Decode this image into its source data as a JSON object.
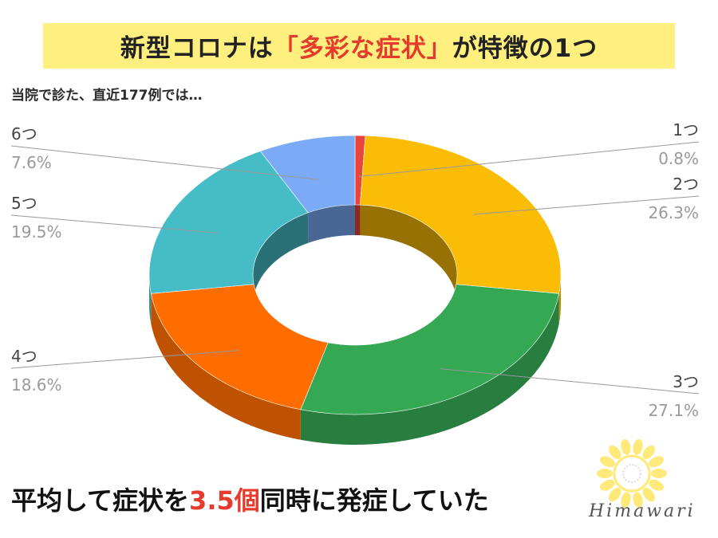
{
  "title": {
    "before": "新型コロナは",
    "open_bracket": "「",
    "highlight": "多彩な症状",
    "close_bracket": "」",
    "after": "が特徴の1つ"
  },
  "subtitle": "当院で診た、直近177例では…",
  "chart_data": {
    "type": "pie",
    "style": "3d-donut",
    "slices": [
      {
        "label": "1つ",
        "percent_text": "0.8%",
        "value": 0.8,
        "color": "#e8463a"
      },
      {
        "label": "2つ",
        "percent_text": "26.3%",
        "value": 26.3,
        "color": "#fbbc05"
      },
      {
        "label": "3つ",
        "percent_text": "27.1%",
        "value": 27.1,
        "color": "#34a853"
      },
      {
        "label": "4つ",
        "percent_text": "18.6%",
        "value": 18.6,
        "color": "#ff6d01"
      },
      {
        "label": "5つ",
        "percent_text": "19.5%",
        "value": 19.5,
        "color": "#46bdc6"
      },
      {
        "label": "6つ",
        "percent_text": "7.6%",
        "value": 7.6,
        "color": "#7baaf7"
      }
    ]
  },
  "footer": {
    "before": "平均して症状を",
    "number": "3.5個",
    "after": "同時に発症していた"
  },
  "logo_text": "Himawari"
}
